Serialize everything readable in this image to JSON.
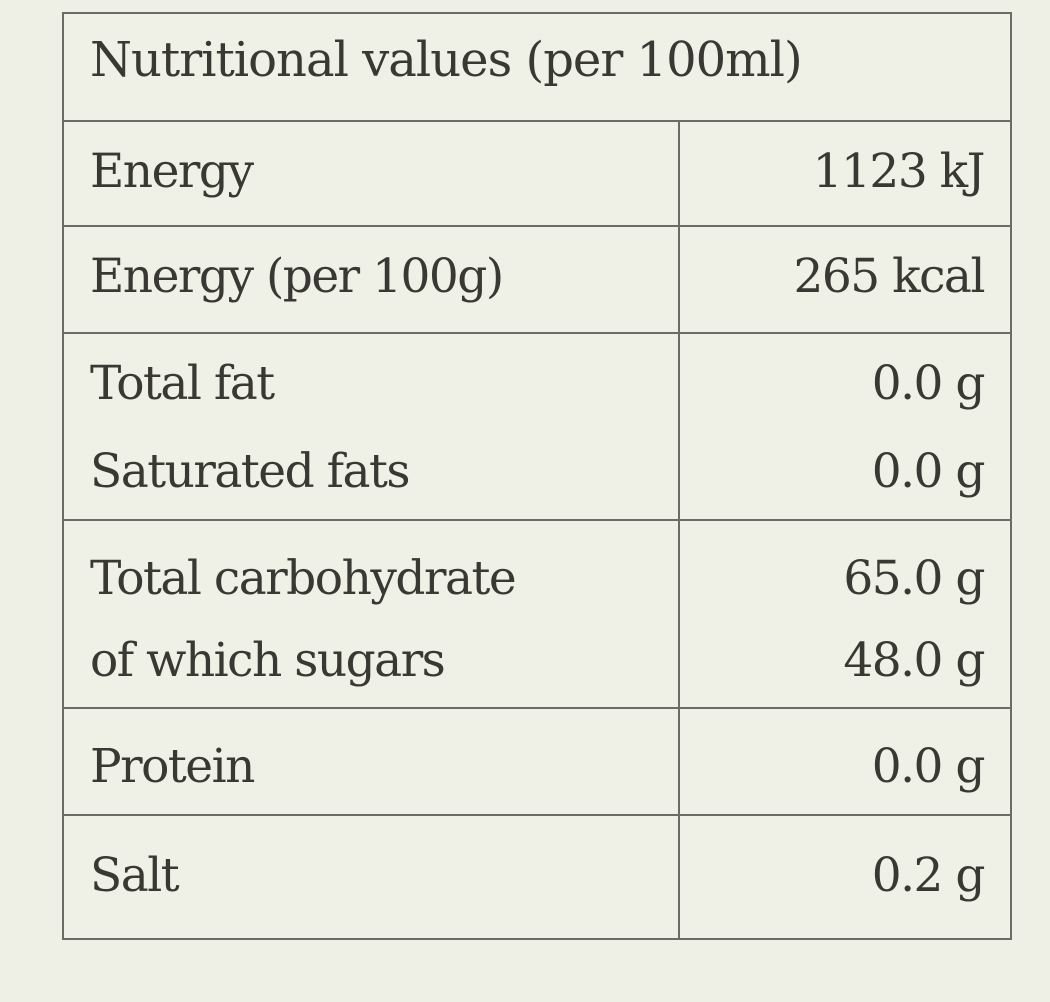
{
  "table": {
    "title": "Nutritional values (per 100ml)",
    "rows": [
      {
        "lines": [
          {
            "name": "Energy",
            "value": "1123 kJ"
          }
        ]
      },
      {
        "lines": [
          {
            "name": "Energy (per 100g)",
            "value": "265 kcal"
          }
        ]
      },
      {
        "lines": [
          {
            "name": "Total fat",
            "value": "0.0 g"
          },
          {
            "name": "Saturated fats",
            "value": "0.0 g"
          }
        ]
      },
      {
        "lines": [
          {
            "name": "Total carbohydrate",
            "value": "65.0 g"
          },
          {
            "name": "of which sugars",
            "value": "48.0 g"
          }
        ]
      },
      {
        "lines": [
          {
            "name": "Protein",
            "value": "0.0 g"
          }
        ]
      },
      {
        "lines": [
          {
            "name": "Salt",
            "value": "0.2 g"
          }
        ]
      }
    ]
  }
}
